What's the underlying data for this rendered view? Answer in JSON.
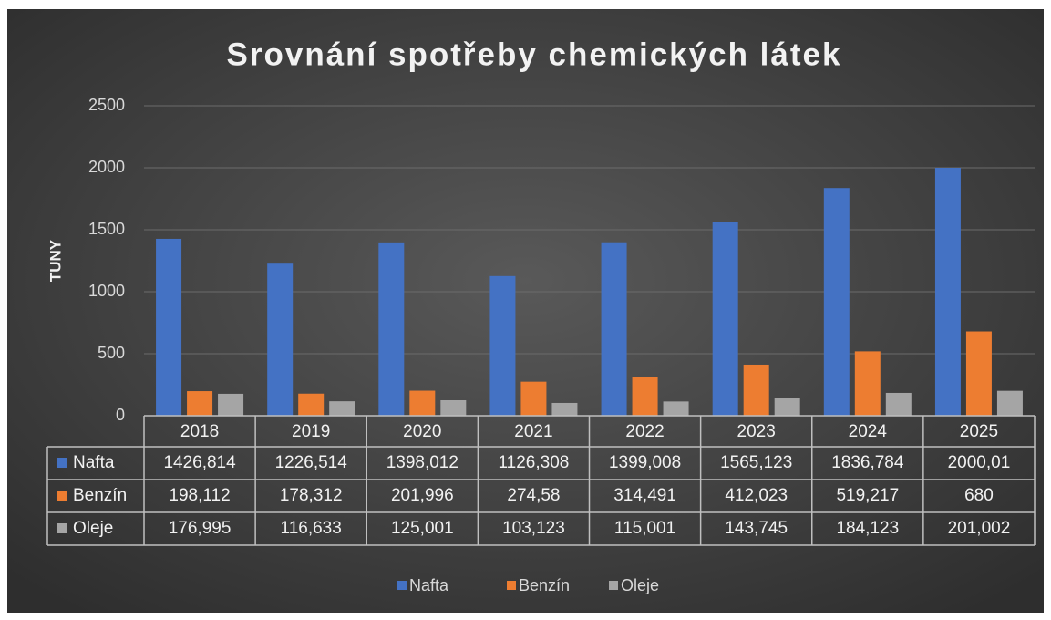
{
  "chart_data": {
    "type": "bar",
    "title": "Srovnání spotřeby chemických látek",
    "y_label": "TUNY",
    "categories": [
      "2018",
      "2019",
      "2020",
      "2021",
      "2022",
      "2023",
      "2024",
      "2025"
    ],
    "series": [
      {
        "name": "Nafta",
        "color": "#4472c4",
        "values": [
          1426.814,
          1226.514,
          1398.012,
          1126.308,
          1399.008,
          1565.123,
          1836.784,
          2000.01
        ],
        "value_labels": [
          "1426,814",
          "1226,514",
          "1398,012",
          "1126,308",
          "1399,008",
          "1565,123",
          "1836,784",
          "2000,01"
        ]
      },
      {
        "name": "Benzín",
        "color": "#ed7d31",
        "values": [
          198.112,
          178.312,
          201.996,
          274.58,
          314.491,
          412.023,
          519.217,
          680
        ],
        "value_labels": [
          "198,112",
          "178,312",
          "201,996",
          "274,58",
          "314,491",
          "412,023",
          "519,217",
          "680"
        ]
      },
      {
        "name": "Oleje",
        "color": "#a5a5a5",
        "values": [
          176.995,
          116.633,
          125.001,
          103.123,
          115.001,
          143.745,
          184.123,
          201.002
        ],
        "value_labels": [
          "176,995",
          "116,633",
          "125,001",
          "103,123",
          "115,001",
          "143,745",
          "184,123",
          "201,002"
        ]
      }
    ],
    "ylim": [
      0,
      2500
    ],
    "yticks": [
      0,
      500,
      1000,
      1500,
      2000,
      2500
    ],
    "grid": true,
    "legend": "bottom"
  }
}
